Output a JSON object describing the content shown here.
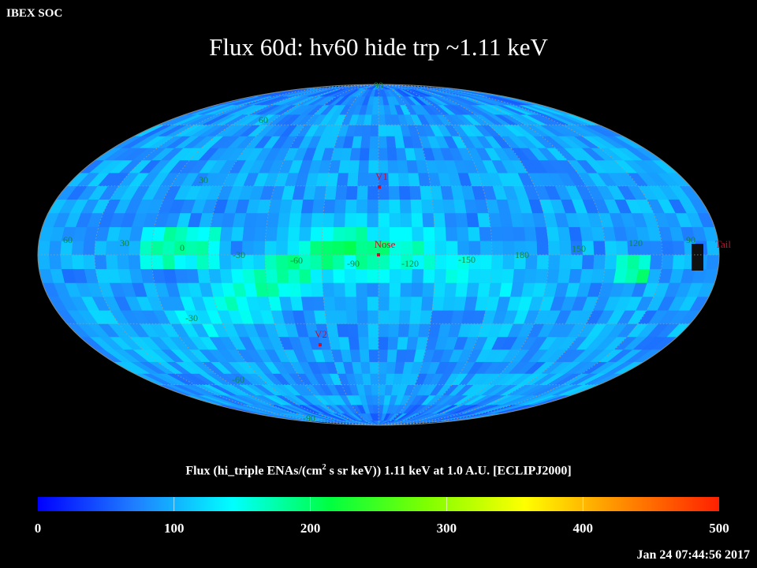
{
  "header": {
    "corner_label": "IBEX SOC",
    "title": "Flux   60d: hv60 hide trp ~1.11 keV"
  },
  "map": {
    "projection": "Mollweide (hammer-aitoff), ecliptic J2000",
    "lat_labels": [
      "90",
      "60",
      "30",
      "-30",
      "-60",
      "-90"
    ],
    "lon_labels": [
      "60",
      "30",
      "0",
      "-30",
      "-60",
      "-90",
      "-120",
      "-150",
      "180",
      "150",
      "120",
      "90"
    ],
    "markers": [
      {
        "label": "V1",
        "lon": 255,
        "lat": 34
      },
      {
        "label": "Nose",
        "lon": 255,
        "lat": 5
      },
      {
        "label": "V2",
        "lon": 290,
        "lat": -34
      },
      {
        "label": "Tail",
        "lon": 75,
        "lat": 5
      }
    ],
    "marker_color": "#c8102e",
    "grid_color": "#9aa0a0",
    "label_color": "#0b8a3a"
  },
  "colorbar": {
    "title_prefix": "Flux (hi_triple ENAs/(cm",
    "title_sup": "2",
    "title_suffix": " s sr keV))  1.11 keV at 1.0 A.U. [ECLIPJ2000]",
    "min": 0,
    "max": 500,
    "tick_labels": [
      "0",
      "100",
      "200",
      "300",
      "400",
      "500"
    ],
    "colors": [
      "#0000ff",
      "#1f7fff",
      "#00ffff",
      "#00ff40",
      "#7fff00",
      "#ffff00",
      "#ff8c00",
      "#ff2000"
    ]
  },
  "timestamp": "Jan 24 07:44:56 2017"
}
